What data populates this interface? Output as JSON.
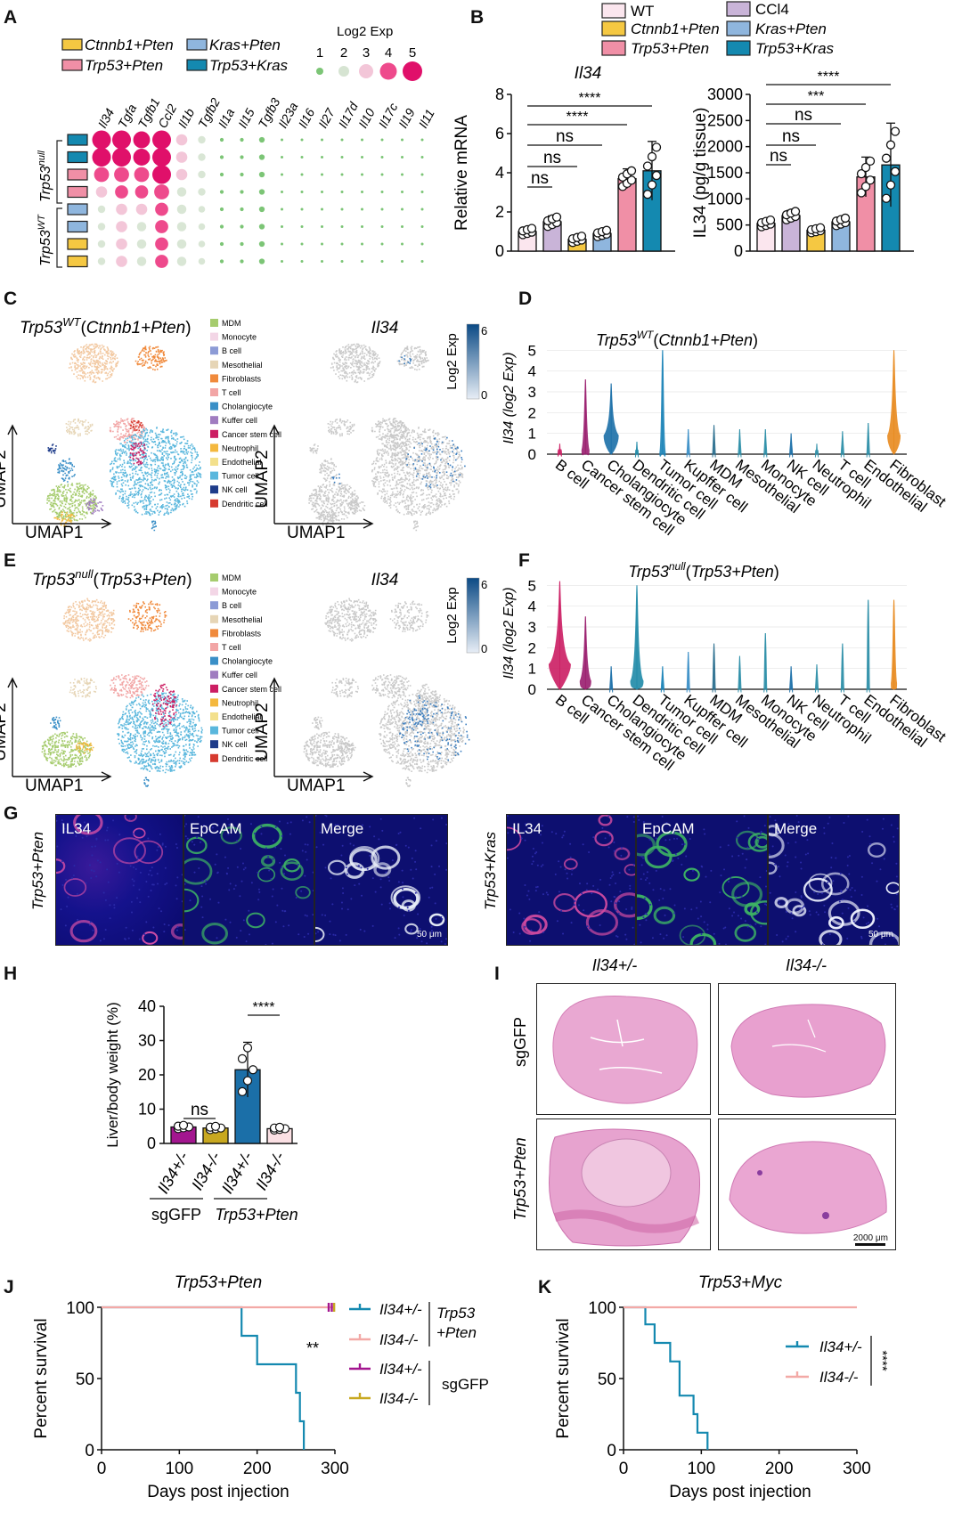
{
  "panel_letters": [
    "A",
    "B",
    "C",
    "D",
    "E",
    "F",
    "G",
    "H",
    "I",
    "J",
    "K"
  ],
  "panelA": {
    "legend_groups": [
      "Ctnnb1+Pten",
      "Kras+Pten",
      "Trp53+Pten",
      "Trp53+Kras"
    ],
    "size_legend_title": "Log2 Exp",
    "size_legend_values": [
      "1",
      "2",
      "3",
      "4",
      "5"
    ],
    "genes": [
      "Il34",
      "Tgfa",
      "Tgfb1",
      "Ccl2",
      "Il1b",
      "Tgfb2",
      "Il1a",
      "Il15",
      "Tgfb3",
      "Il23a",
      "Il16",
      "Il27",
      "Il17d",
      "Il10",
      "Il17c",
      "Il19",
      "Il11"
    ],
    "row_groups": [
      "Trp53null",
      "Trp53WT"
    ]
  },
  "panelB": {
    "legend": [
      "WT",
      "CCl4",
      "Ctnnb1+Pten",
      "Kras+Pten",
      "Trp53+Pten",
      "Trp53+Kras"
    ],
    "colors": {
      "WT": "#fbe6ee",
      "CCl4": "#c9b4d8",
      "Ctnnb1+Pten": "#f5c842",
      "Kras+Pten": "#8fb6de",
      "Trp53+Pten": "#f08fa6",
      "Trp53+Kras": "#1489b0"
    },
    "left_title": "Il34",
    "left_ylabel": "Relative mRNA",
    "left_ticks": [
      "0",
      "2",
      "4",
      "6",
      "8"
    ],
    "right_ylabel": "IL34 (pg/g tissue)",
    "right_ticks": [
      "0",
      "500",
      "1000",
      "1500",
      "2000",
      "2500",
      "3000"
    ],
    "left_sig": [
      "****",
      "****",
      "ns",
      "ns",
      "ns"
    ],
    "right_sig": [
      "****",
      "***",
      "ns",
      "ns",
      "ns"
    ]
  },
  "panelC": {
    "title": "Trp53WT(Ctnnb1+Pten)",
    "umap_x": "UMAP1",
    "umap_y": "UMAP2",
    "right_title": "Il34",
    "scale_title": "Log2 Exp",
    "scale_max": "6",
    "scale_min": "0"
  },
  "celltypes": [
    "MDM",
    "Monocyte",
    "B cell",
    "Mesothelial",
    "Fibroblasts",
    "T cell",
    "Cholangiocyte",
    "Kuffer cell",
    "Cancer stem cell",
    "Neutrophil",
    "Endothelial",
    "Tumor cell",
    "NK cell",
    "Dendritic cell"
  ],
  "celltype_colors": [
    "#a6cc6e",
    "#f3d6e6",
    "#8c9bd6",
    "#e6d5b6",
    "#f08a3c",
    "#f2a5a5",
    "#3a8fc7",
    "#a07cc0",
    "#cc1e63",
    "#f4b83e",
    "#f3e08c",
    "#5ab7dd",
    "#1e3c8a",
    "#d63a2f"
  ],
  "panelD": {
    "title": "Trp53WT(Ctnnb1+Pten)",
    "ylabel": "Il34 (log2 Exp)",
    "yticks": [
      "0",
      "1",
      "2",
      "3",
      "4",
      "5"
    ]
  },
  "panelE": {
    "title": "Trp53null(Trp53+Pten)",
    "right_title": "Il34",
    "scale_title": "Log2 Exp",
    "scale_max": "6",
    "scale_min": "0"
  },
  "panelF": {
    "title": "Trp53null(Trp53+Pten)",
    "ylabel": "Il34 (log2 Exp)",
    "yticks": [
      "0",
      "1",
      "2",
      "3",
      "4",
      "5"
    ]
  },
  "violin_categories": [
    "B cell",
    "Cancer stem cell",
    "Cholangiocyte",
    "Dendritic cell",
    "Tumor cell",
    "Kupffer cell",
    "MDM",
    "Mesothelial",
    "Monocyte",
    "NK cell",
    "Neutrophil",
    "T cell",
    "Endothelial",
    "Fibroblast"
  ],
  "panelG": {
    "left_row": "Trp53+Pten",
    "right_row": "Trp53+Kras",
    "channels": [
      "IL34",
      "EpCAM",
      "Merge"
    ],
    "scale": "50 μm"
  },
  "panelH": {
    "ylabel": "Liver/body weight (%)",
    "yticks": [
      "0",
      "10",
      "20",
      "30",
      "40"
    ],
    "xlabels": [
      "Il34+/-",
      "Il34-/-",
      "Il34+/-",
      "Il34-/-"
    ],
    "groups": [
      "sgGFP",
      "Trp53+Pten"
    ],
    "sig": [
      "ns",
      "****"
    ]
  },
  "panelI": {
    "cols": [
      "Il34+/-",
      "Il34-/-"
    ],
    "rows": [
      "sgGFP",
      "Trp53+Pten"
    ],
    "scale": "2000 μm"
  },
  "panelJ": {
    "title": "Trp53+Pten",
    "ylabel": "Percent survival",
    "xlabel": "Days post injection",
    "xticks": [
      "0",
      "100",
      "200",
      "300"
    ],
    "yticks": [
      "0",
      "50",
      "100"
    ],
    "legend": [
      "Il34+/-",
      "Il34-/-",
      "Il34+/-",
      "Il34-/-"
    ],
    "group_labels": [
      "Trp53",
      "+Pten",
      "sgGFP"
    ],
    "sig": "**"
  },
  "panelK": {
    "title": "Trp53+Myc",
    "ylabel": "Percent survival",
    "xlabel": "Days post injection",
    "xticks": [
      "0",
      "100",
      "200",
      "300"
    ],
    "yticks": [
      "0",
      "50",
      "100"
    ],
    "legend": [
      "Il34+/-",
      "Il34-/-"
    ],
    "sig": "****"
  },
  "chart_data": [
    {
      "type": "bar",
      "title": "Il34",
      "ylabel": "Relative mRNA",
      "ylim": [
        0,
        8
      ],
      "categories": [
        "WT",
        "CCl4",
        "Ctnnb1+Pten",
        "Kras+Pten",
        "Trp53+Pten",
        "Trp53+Kras"
      ],
      "values": [
        1.0,
        1.5,
        0.6,
        0.9,
        3.7,
        4.1
      ],
      "errors": [
        0.2,
        0.3,
        0.2,
        0.2,
        0.5,
        1.5
      ]
    },
    {
      "type": "bar",
      "ylabel": "IL34 (pg/g tissue)",
      "ylim": [
        0,
        3000
      ],
      "categories": [
        "WT",
        "CCl4",
        "Ctnnb1+Pten",
        "Kras+Pten",
        "Trp53+Pten",
        "Trp53+Kras"
      ],
      "values": [
        530,
        680,
        400,
        560,
        1420,
        1650
      ],
      "errors": [
        80,
        100,
        60,
        90,
        380,
        800
      ]
    },
    {
      "type": "bar",
      "ylabel": "Liver/body weight (%)",
      "ylim": [
        0,
        40
      ],
      "categories": [
        "Il34+/- sgGFP",
        "Il34-/- sgGFP",
        "Il34+/- Trp53+Pten",
        "Il34-/- Trp53+Pten"
      ],
      "values": [
        4.8,
        4.5,
        21.5,
        4.3
      ],
      "errors": [
        0.6,
        0.6,
        8,
        0.5
      ]
    },
    {
      "type": "line",
      "title": "Trp53+Pten",
      "xlabel": "Days post injection",
      "ylabel": "Percent survival",
      "xlim": [
        0,
        300
      ],
      "ylim": [
        0,
        100
      ],
      "series": [
        {
          "name": "Il34+/-",
          "x": [
            0,
            180,
            180,
            185,
            185,
            200,
            200,
            250,
            250,
            255,
            255,
            260,
            260
          ],
          "y": [
            100,
            100,
            80,
            80,
            80,
            80,
            60,
            60,
            40,
            40,
            20,
            20,
            0
          ]
        },
        {
          "name": "Il34-/-",
          "x": [
            0,
            300
          ],
          "y": [
            100,
            100
          ]
        }
      ]
    },
    {
      "type": "line",
      "title": "Trp53+Myc",
      "xlabel": "Days post injection",
      "ylabel": "Percent survival",
      "xlim": [
        0,
        300
      ],
      "ylim": [
        0,
        100
      ],
      "series": [
        {
          "name": "Il34+/-",
          "x": [
            0,
            28,
            28,
            40,
            40,
            60,
            60,
            72,
            72,
            90,
            90,
            95,
            95,
            108,
            108
          ],
          "y": [
            100,
            100,
            88,
            88,
            75,
            75,
            62,
            62,
            38,
            38,
            25,
            25,
            12,
            12,
            0
          ]
        },
        {
          "name": "Il34-/-",
          "x": [
            0,
            300
          ],
          "y": [
            100,
            100
          ]
        }
      ]
    }
  ]
}
